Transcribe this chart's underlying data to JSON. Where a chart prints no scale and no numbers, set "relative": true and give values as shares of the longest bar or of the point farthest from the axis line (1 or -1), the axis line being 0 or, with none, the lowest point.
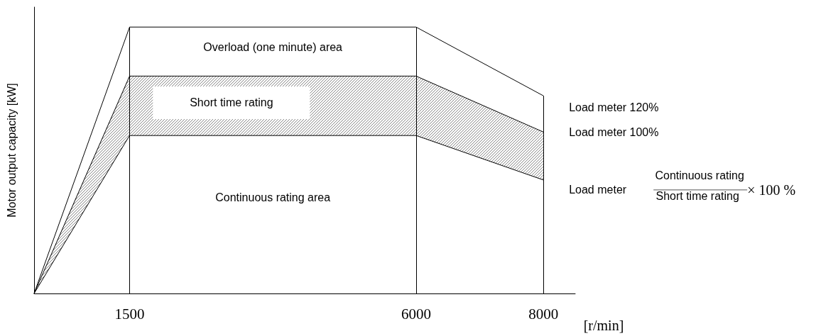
{
  "chart_data": {
    "type": "line",
    "relative": true,
    "ylabel": "Motor output capacity [kW]",
    "xlabel": "[r/min]",
    "x": [
      0,
      1500,
      6000,
      8000
    ],
    "xlim": [
      0,
      8500
    ],
    "xticks": [
      1500,
      6000,
      8000
    ],
    "series": [
      {
        "color": "#000000",
        "values": [
          0,
          1,
          1,
          0.742
        ]
      },
      {
        "type": "area",
        "color": "#000000",
        "values": [
          0,
          0.816,
          0.816,
          0.606
        ]
      },
      {
        "color": "#000000",
        "values": [
          0,
          0.593,
          0.593,
          0.426
        ]
      }
    ],
    "ref_lines": [
      {
        "axis": "x",
        "value": 1500
      },
      {
        "axis": "x",
        "value": 6000
      },
      {
        "axis": "x",
        "value": 8000
      }
    ],
    "annotations": [
      "Overload (one minute) area",
      "Short time rating",
      "Continuous rating area",
      "Load meter 120%",
      "Load meter 100%",
      "Load meter",
      "Continuous rating",
      "Short time rating",
      "× 100 %"
    ],
    "marker": "none",
    "line_style": "solid"
  }
}
